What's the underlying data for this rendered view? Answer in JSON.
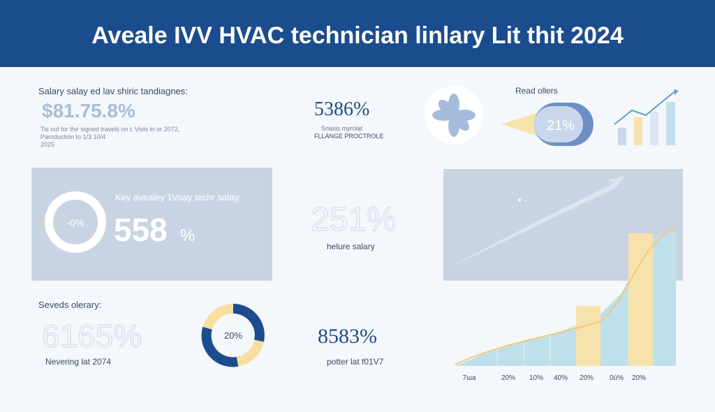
{
  "header": {
    "title": "Aveale IVV HVAC technician linlary Lit thit 2024"
  },
  "top_left": {
    "label": "Salary salay ed lav shiric tandiagnes:",
    "value": "$81.75.8%",
    "note_lines": [
      "Tis ouf for the signed travels on c Vists in or 2072,",
      "Paroduction to 1/3 10/4",
      "2025"
    ]
  },
  "top_middle": {
    "value": "5386%",
    "lines": [
      "Snasis myrolat",
      "FLLANGE PROCTROLE"
    ]
  },
  "top_right": {
    "label": "Read ollers",
    "pill": "21%"
  },
  "panel_left": {
    "donut": "-0%",
    "label": "Key avealey 1Vaay techr salay:",
    "value": "558",
    "unit": "%"
  },
  "middle": {
    "value": "251%",
    "label": "helure salary"
  },
  "bottom_left": {
    "label": "Seveds olerary:",
    "value": "6165%",
    "note": "Nevering lat 2074"
  },
  "bottom_donut": {
    "label": "20%"
  },
  "bottom_middle": {
    "value": "8583%",
    "note": "potter lat f01V7"
  },
  "bottom_chart": {
    "labels": [
      "7ша",
      "20%",
      "10%",
      "40%",
      "20%",
      "0ú%",
      "20%"
    ]
  }
}
